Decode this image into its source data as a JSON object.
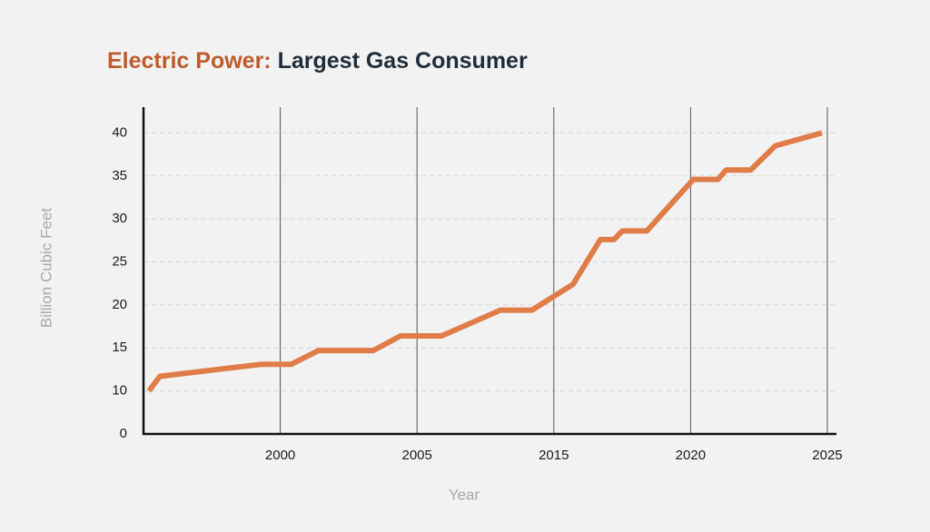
{
  "chart_data": {
    "type": "line",
    "title_highlight": "Electric Power:",
    "title": "Largest Gas Consumer",
    "xlabel": "Year",
    "ylabel": "Billion Cubic Feet",
    "x": [
      1995.2,
      1995.6,
      1999.3,
      2000.4,
      2001.4,
      2003.4,
      2004.4,
      2006.8,
      2011.1,
      2013.4,
      2015.7,
      2016.7,
      2017.2,
      2017.5,
      2018.4,
      2020.1,
      2021.0,
      2021.3,
      2022.2,
      2023.1,
      2024.8
    ],
    "values": [
      10.0,
      11.7,
      13.1,
      13.1,
      14.7,
      14.7,
      16.4,
      16.4,
      19.4,
      19.4,
      22.4,
      27.6,
      27.6,
      28.6,
      28.6,
      34.6,
      34.6,
      35.7,
      35.7,
      38.5,
      40.0
    ],
    "color": "#e07c48",
    "title_highlight_color": "#bf5a2b",
    "title_color": "#1f2d3a",
    "xlim": [
      1995,
      2025.3
    ],
    "xticks": [
      2000,
      2005,
      2015,
      2020,
      2025
    ],
    "ylim": [
      0,
      43
    ],
    "yticks": [
      0,
      10,
      15,
      20,
      25,
      30,
      35,
      40
    ],
    "grid": true
  }
}
